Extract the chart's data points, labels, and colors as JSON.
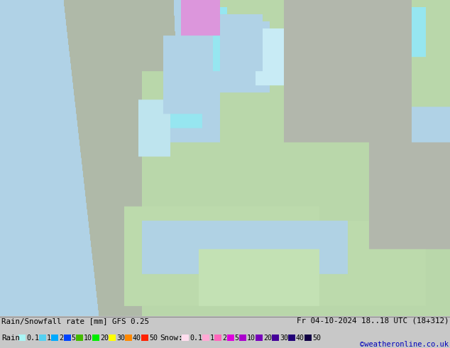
{
  "title_left": "Rain/Snowfall rate [mm] GFS 0.25",
  "title_right": "Fr 04-10-2024 18..18 UTC (18+312)",
  "credit": "©weatheronline.co.uk",
  "legend_label_rain": "Rain",
  "legend_label_snow": "Snow:",
  "rain_labels": [
    "0.1",
    "1",
    "2",
    "5",
    "10",
    "20",
    "30",
    "40",
    "50"
  ],
  "snow_labels": [
    "0.1",
    "1",
    "2",
    "5",
    "10",
    "20",
    "30",
    "40",
    "50"
  ],
  "rain_swatch_colors": [
    "#aaf5f5",
    "#55d0f0",
    "#00aaff",
    "#0044ff",
    "#44bb00",
    "#00ee00",
    "#ffff00",
    "#ff8800",
    "#ff2200"
  ],
  "snow_swatch_colors": [
    "#ffddee",
    "#ffaad4",
    "#ff66bb",
    "#dd00dd",
    "#aa00cc",
    "#7700bb",
    "#440099",
    "#220077",
    "#110044"
  ],
  "fig_width": 6.34,
  "fig_height": 4.9,
  "dpi": 100,
  "land_color": "#b8c8a0",
  "sea_color": "#c8e0f0",
  "bg_color": "#c8c8c8",
  "legend_bg": "#e8e8e8",
  "text_color_rain_01": "#aaf5f5",
  "text_color_rain_1": "#55ccee",
  "text_color_rain_2": "#0088ff",
  "text_color_rain_5": "#0044ff",
  "text_color_rain_10": "#44bb00",
  "text_color_rain_20": "#00ee00",
  "text_color_rain_30": "#ffff00",
  "text_color_rain_40": "#ff8800",
  "text_color_rain_50": "#ff2200",
  "text_color_snow_01": "#ffccee",
  "text_color_snow_1": "#ff99cc",
  "text_color_snow_2": "#ff55bb",
  "text_color_snow_5": "#dd00dd",
  "separator_color": "#888888"
}
